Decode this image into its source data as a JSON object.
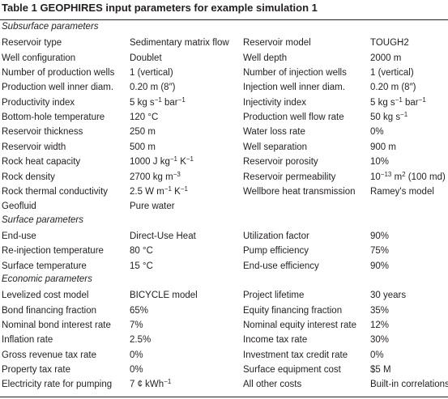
{
  "table_caption": "Table 1  GEOPHIRES input parameters for example simulation 1",
  "sections": [
    {
      "title": "Subsurface parameters",
      "rows": [
        [
          "Reservoir type",
          "Sedimentary matrix flow",
          "Reservoir model",
          "TOUGH2"
        ],
        [
          "Well configuration",
          "Doublet",
          "Well depth",
          "2000 m"
        ],
        [
          "Number of production wells",
          "1 (vertical)",
          "Number of injection wells",
          "1 (vertical)"
        ],
        [
          "Production well inner diam.",
          "0.20 m (8″)",
          "Injection well inner diam.",
          "0.20 m (8″)"
        ],
        [
          "Productivity index",
          "5 kg s^−1 bar^−1",
          "Injectivity index",
          "5 kg s^−1 bar^−1"
        ],
        [
          "Bottom-hole temperature",
          "120 °C",
          "Production well flow rate",
          "50 kg s^−1"
        ],
        [
          "Reservoir thickness",
          "250 m",
          "Water loss rate",
          "0%"
        ],
        [
          "Reservoir width",
          "500 m",
          "Well separation",
          "900 m"
        ],
        [
          "Rock heat capacity",
          "1000 J kg^−1 K^−1",
          "Reservoir porosity",
          "10%"
        ],
        [
          "Rock density",
          "2700 kg m^−3",
          "Reservoir permeability",
          "10^−13 m^2 (100 md)"
        ],
        [
          "Rock thermal conductivity",
          "2.5 W m^−1 K^−1",
          "Wellbore heat transmission",
          "Ramey's model"
        ],
        [
          "Geofluid",
          "Pure water",
          "",
          ""
        ]
      ]
    },
    {
      "title": "Surface parameters",
      "rows": [
        [
          "End-use",
          "Direct-Use Heat",
          "Utilization factor",
          "90%"
        ],
        [
          "Re-injection temperature",
          "80 °C",
          "Pump efficiency",
          "75%"
        ],
        [
          "Surface temperature",
          "15 °C",
          "End-use efficiency",
          "90%"
        ]
      ]
    },
    {
      "title": "Economic parameters",
      "rows": [
        [
          "Levelized cost model",
          "BICYCLE model",
          "Project lifetime",
          "30 years"
        ],
        [
          "Bond financing fraction",
          "65%",
          "Equity financing fraction",
          "35%"
        ],
        [
          "Nominal bond interest rate",
          "7%",
          "Nominal equity interest rate",
          "12%"
        ],
        [
          "Inflation rate",
          "2.5%",
          "Income tax rate",
          "30%"
        ],
        [
          "Gross revenue tax rate",
          "0%",
          "Investment tax credit rate",
          "0%"
        ],
        [
          "Property tax rate",
          "0%",
          "Surface equipment cost",
          "$5 M"
        ],
        [
          "Electricity rate for pumping",
          "7 ¢ kWh^−1",
          "All other costs",
          "Built-in correlations"
        ]
      ]
    }
  ]
}
